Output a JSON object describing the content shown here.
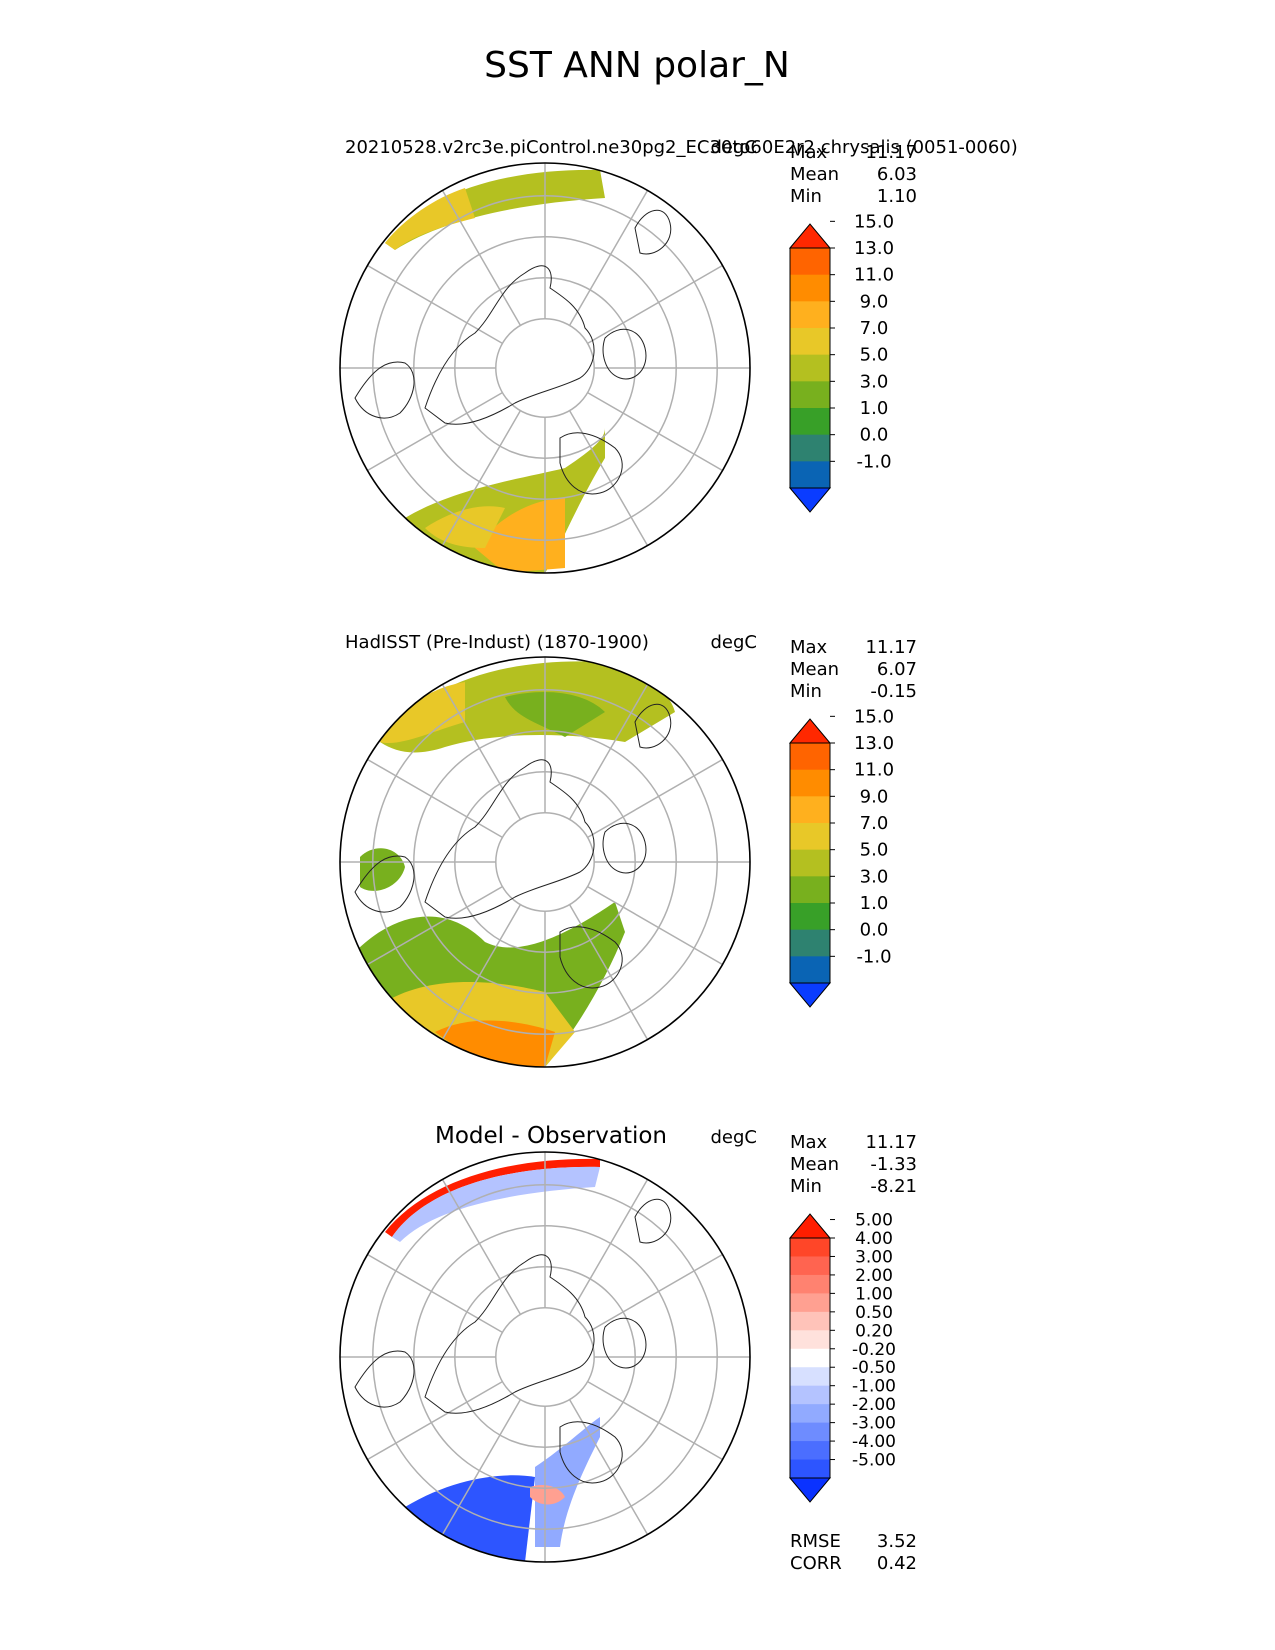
{
  "figure": {
    "title": "SST ANN polar_N"
  },
  "panels": [
    {
      "left_title": "20210528.v2rc3e.piControl.ne30pg2_EC30to60E2r2.chrysalis (0051-0060)",
      "units": "degC",
      "stats": [
        {
          "label": "Max",
          "value": "11.17"
        },
        {
          "label": "Mean",
          "value": "6.03"
        },
        {
          "label": "Min",
          "value": "1.10"
        }
      ]
    },
    {
      "left_title": "HadISST (Pre-Indust) (1870-1900)",
      "units": "degC",
      "stats": [
        {
          "label": "Max",
          "value": "11.17"
        },
        {
          "label": "Mean",
          "value": "6.07"
        },
        {
          "label": "Min",
          "value": "-0.15"
        }
      ]
    },
    {
      "center_title": "Model - Observation",
      "units": "degC",
      "stats": [
        {
          "label": "Max",
          "value": "11.17"
        },
        {
          "label": "Mean",
          "value": "-1.33"
        },
        {
          "label": "Min",
          "value": "-8.21"
        }
      ],
      "metrics": [
        {
          "label": "RMSE",
          "value": "3.52"
        },
        {
          "label": "CORR",
          "value": "0.42"
        }
      ]
    }
  ],
  "chart_data": [
    {
      "type": "heatmap",
      "projection": "north polar stereographic",
      "colorbar": {
        "ticks": [
          "-1.0",
          "0.0",
          "1.0",
          "3.0",
          "5.0",
          "7.0",
          "9.0",
          "11.0",
          "13.0",
          "15.0"
        ],
        "colors": [
          "#0a3cff",
          "#0a64b4",
          "#2e8270",
          "#38a028",
          "#78b01e",
          "#b4c020",
          "#e8c828",
          "#ffb01e",
          "#ff8c00",
          "#ff6400",
          "#ff2800"
        ],
        "extend": "both"
      }
    },
    {
      "type": "heatmap",
      "projection": "north polar stereographic",
      "colorbar": {
        "ticks": [
          "-1.0",
          "0.0",
          "1.0",
          "3.0",
          "5.0",
          "7.0",
          "9.0",
          "11.0",
          "13.0",
          "15.0"
        ],
        "colors": [
          "#0a3cff",
          "#0a64b4",
          "#2e8270",
          "#38a028",
          "#78b01e",
          "#b4c020",
          "#e8c828",
          "#ffb01e",
          "#ff8c00",
          "#ff6400",
          "#ff2800"
        ],
        "extend": "both"
      }
    },
    {
      "type": "heatmap",
      "projection": "north polar stereographic",
      "colorbar": {
        "ticks": [
          "-5.00",
          "-4.00",
          "-3.00",
          "-2.00",
          "-1.00",
          "-0.50",
          "-0.20",
          "0.20",
          "0.50",
          "1.00",
          "2.00",
          "3.00",
          "4.00",
          "5.00"
        ],
        "colors": [
          "#0a32ff",
          "#2d55ff",
          "#4b6eff",
          "#6e8cff",
          "#91aaff",
          "#b4c3ff",
          "#d7e0ff",
          "#ffffff",
          "#ffe1dc",
          "#ffc3b9",
          "#ffa091",
          "#ff8270",
          "#ff6450",
          "#ff4628",
          "#ff1e00"
        ],
        "extend": "both"
      }
    }
  ]
}
